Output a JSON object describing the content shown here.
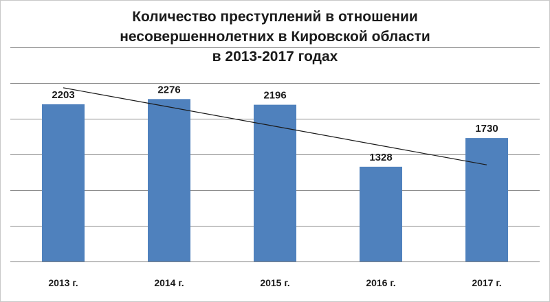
{
  "title_lines": [
    "Количество преступлений в отношении",
    "несовершеннолетних в Кировской области",
    "в 2013-2017 годах"
  ],
  "colors": {
    "bar": "#4f81bd",
    "trendline": "#1a1a1a"
  },
  "chart_data": {
    "type": "bar",
    "title": "Количество преступлений в отношении несовершеннолетних в Кировской области в 2013-2017 годах",
    "categories": [
      "2013 г.",
      "2014 г.",
      "2015 г.",
      "2016 г.",
      "2017 г."
    ],
    "values": [
      2203,
      2276,
      2196,
      1328,
      1730
    ],
    "data_labels": [
      "2203",
      "2276",
      "2196",
      "1328",
      "1730"
    ],
    "xlabel": "",
    "ylabel": "",
    "ylim": [
      0,
      3000
    ],
    "gridline_step": 500,
    "y_tick_labels_shown": false,
    "grid": true,
    "legend": "none",
    "trendline": {
      "type": "linear",
      "values": [
        2434,
        2164,
        1894,
        1624,
        1354
      ]
    }
  }
}
